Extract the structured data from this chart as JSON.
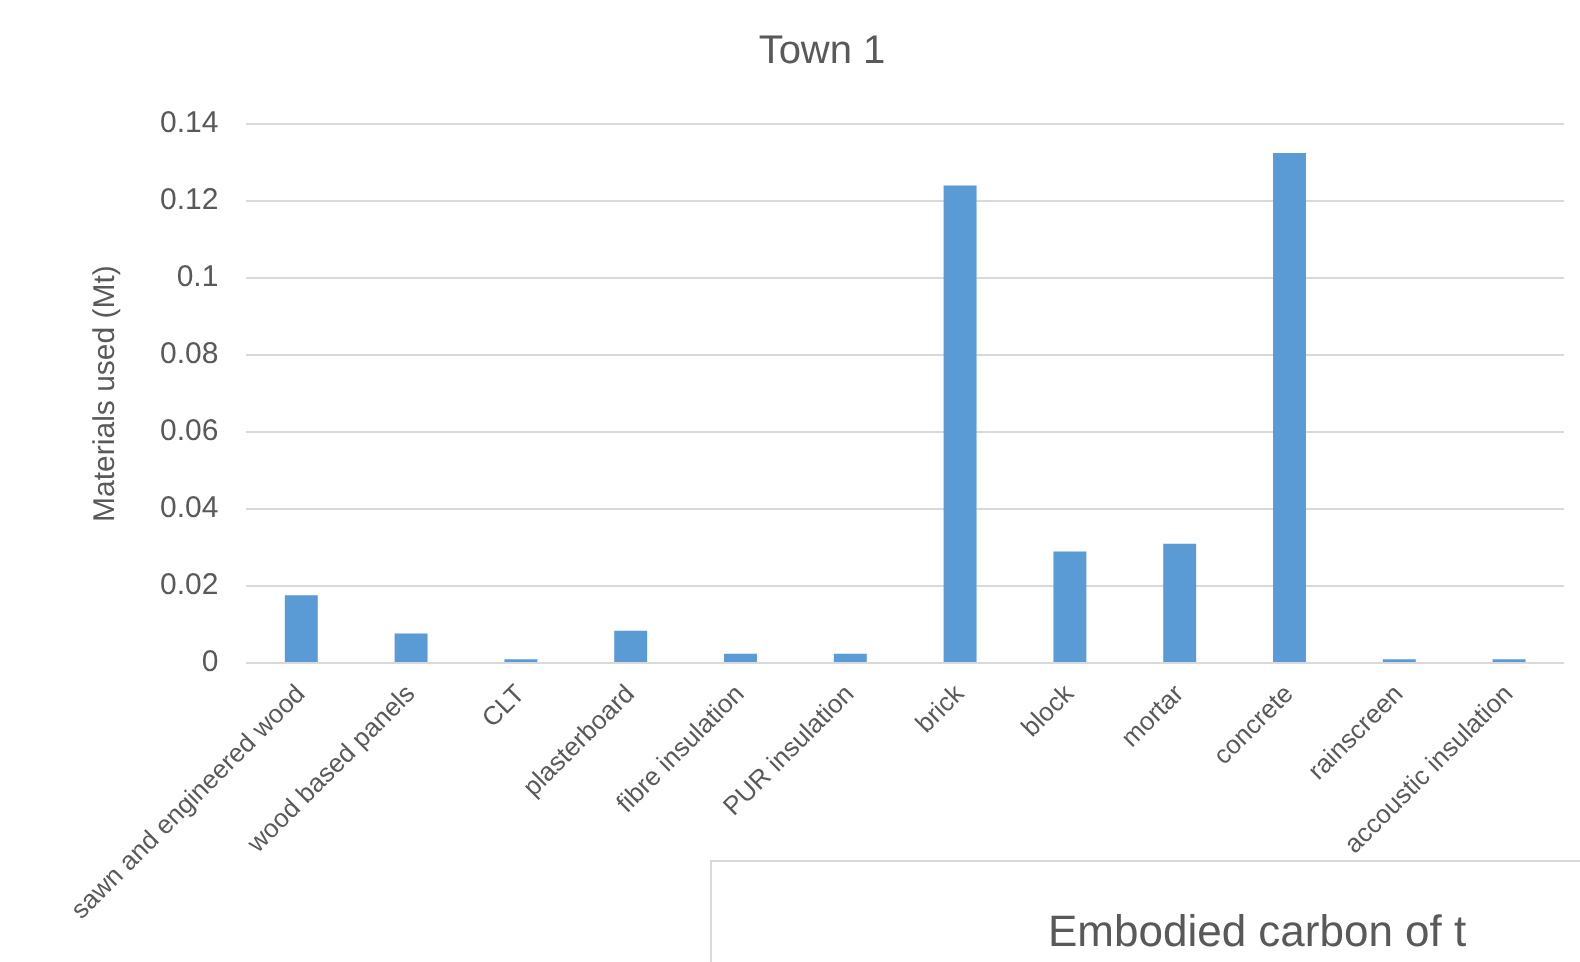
{
  "chart_data": {
    "type": "bar",
    "title": "Town 1",
    "ylabel": "Materials used (Mt)",
    "categories": [
      "sawn and engineered wood",
      "wood based panels",
      "CLT",
      "plasterboard",
      "fibre insulation",
      "PUR insulation",
      "brick",
      "block",
      "mortar",
      "concrete",
      "rainscreen",
      "accoustic insulation"
    ],
    "values": [
      0.0176,
      0.0077,
      0.001,
      0.0084,
      0.0024,
      0.0024,
      0.124,
      0.029,
      0.031,
      0.1325,
      0.001,
      0.001
    ],
    "color": "#5b9bd5",
    "ylim": [
      0,
      0.14
    ],
    "yticks": [
      0,
      0.02,
      0.04,
      0.06,
      0.08,
      0.1,
      0.12,
      0.14
    ],
    "grid": "y",
    "legend": false,
    "annotations": [
      "Embodied carbon of t"
    ]
  }
}
